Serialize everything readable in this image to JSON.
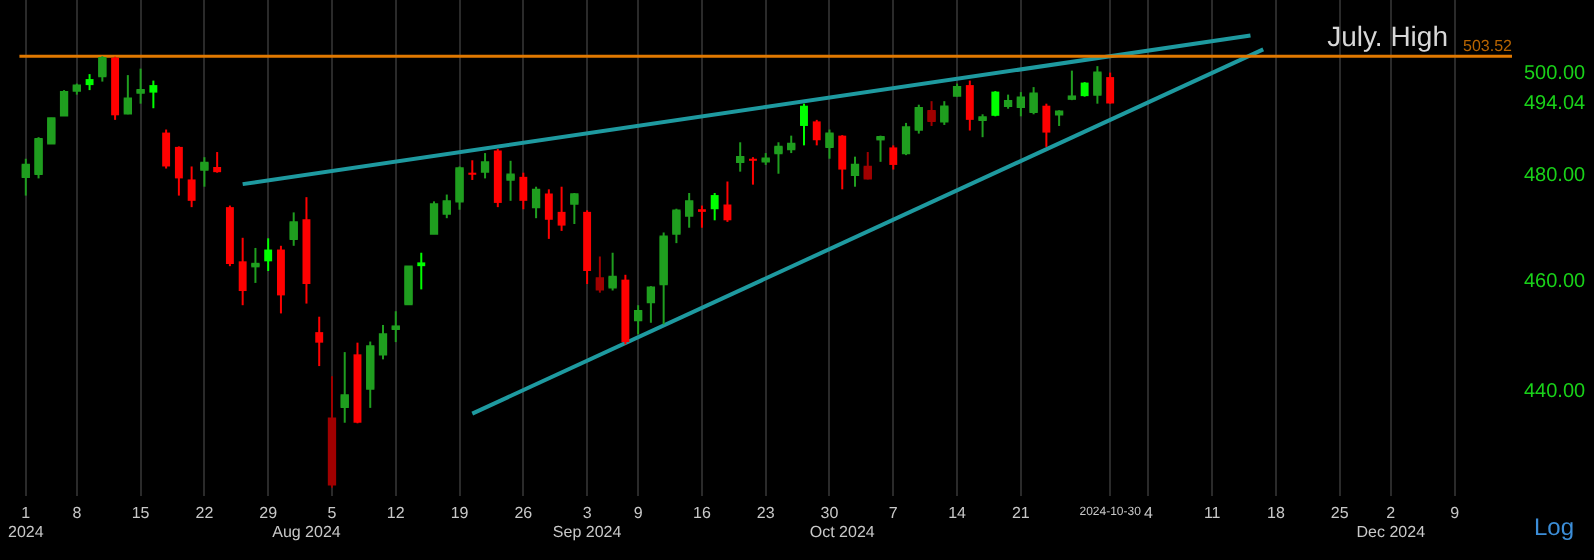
{
  "chart_data": {
    "type": "candlestick",
    "categories": [
      "1\n2024",
      null,
      null,
      null,
      "8",
      null,
      null,
      null,
      null,
      "15",
      null,
      null,
      null,
      null,
      "22",
      null,
      null,
      null,
      null,
      "29",
      null,
      null,
      "\nAug 2024",
      null,
      "5",
      null,
      null,
      null,
      null,
      "12",
      null,
      null,
      null,
      null,
      "19",
      null,
      null,
      null,
      null,
      "26",
      null,
      null,
      null,
      null,
      "3\nSep 2024",
      null,
      null,
      null,
      "9",
      null,
      null,
      null,
      null,
      "16",
      null,
      null,
      null,
      null,
      "23",
      null,
      null,
      null,
      null,
      "30",
      "\nOct 2024",
      null,
      null,
      null,
      "7",
      null,
      null,
      null,
      null,
      "14",
      null,
      null,
      null,
      null,
      "21",
      null,
      null,
      null,
      null,
      null,
      null,
      "2024-10-30",
      null,
      null,
      "4",
      null,
      null,
      null,
      null,
      "11",
      null,
      null,
      null,
      null,
      "18",
      null,
      null,
      null,
      null,
      "25",
      null,
      null,
      null,
      "2\nDec 2024",
      null,
      null,
      null,
      null,
      "9",
      null,
      null,
      null,
      null
    ],
    "ohlc": [
      [
        479.7,
        483.2,
        476.1,
        482.0
      ],
      [
        480.3,
        487.4,
        479.4,
        487.0
      ],
      [
        486.2,
        491.2,
        486.1,
        491.1
      ],
      [
        491.7,
        496.7,
        491.6,
        496.3
      ],
      [
        496.6,
        498.0,
        495.8,
        497.6
      ],
      [
        498.9,
        499.9,
        496.7,
        497.7
      ],
      [
        499.5,
        503.52,
        498.4,
        503.1
      ],
      [
        503.2,
        503.4,
        490.8,
        491.7
      ],
      [
        492.1,
        499.7,
        491.9,
        495.0
      ],
      [
        496.2,
        501.0,
        494.0,
        496.7
      ],
      [
        497.7,
        498.6,
        493.1,
        496.2
      ],
      [
        488.3,
        488.9,
        481.3,
        481.7
      ],
      [
        485.5,
        485.6,
        476.1,
        479.4
      ],
      [
        479.2,
        481.7,
        473.9,
        475.1
      ],
      [
        481.1,
        483.5,
        477.8,
        482.4
      ],
      [
        481.6,
        484.5,
        480.5,
        480.6
      ],
      [
        473.9,
        474.2,
        462.8,
        463.2
      ],
      [
        463.7,
        468.1,
        455.6,
        458.2
      ],
      [
        462.8,
        466.2,
        459.7,
        463.2
      ],
      [
        465.9,
        468.0,
        461.9,
        463.7
      ],
      [
        465.9,
        466.6,
        454.1,
        457.4
      ],
      [
        467.9,
        472.9,
        466.6,
        471.0
      ],
      [
        471.6,
        475.8,
        455.9,
        459.5
      ],
      [
        450.7,
        453.5,
        444.6,
        448.8
      ],
      [
        424.0,
        442.8,
        423.4,
        435.3
      ],
      [
        437.4,
        447.1,
        434.6,
        439.4
      ],
      [
        446.7,
        448.8,
        434.5,
        434.6
      ],
      [
        440.6,
        449.0,
        437.2,
        448.1
      ],
      [
        446.7,
        452.0,
        445.8,
        450.3
      ],
      [
        451.3,
        454.5,
        448.9,
        451.7
      ],
      [
        455.8,
        462.8,
        455.7,
        462.7
      ],
      [
        463.5,
        465.3,
        458.5,
        462.8
      ],
      [
        468.9,
        475.0,
        468.8,
        474.4
      ],
      [
        472.7,
        476.3,
        471.8,
        475.0
      ],
      [
        475.0,
        481.7,
        473.4,
        481.3
      ],
      [
        480.5,
        482.9,
        479.1,
        480.1
      ],
      [
        480.7,
        484.3,
        479.4,
        482.5
      ],
      [
        484.8,
        485.1,
        473.9,
        474.7
      ],
      [
        479.2,
        482.8,
        475.1,
        480.1
      ],
      [
        479.7,
        480.5,
        473.5,
        475.1
      ],
      [
        473.9,
        477.8,
        471.8,
        477.2
      ],
      [
        476.5,
        477.3,
        467.9,
        471.5
      ],
      [
        473.0,
        477.8,
        469.4,
        470.4
      ],
      [
        474.6,
        476.6,
        470.7,
        476.3
      ],
      [
        473.0,
        473.3,
        459.5,
        461.9
      ],
      [
        458.5,
        464.6,
        457.9,
        460.5
      ],
      [
        458.9,
        465.3,
        458.3,
        460.8
      ],
      [
        460.3,
        461.2,
        448.5,
        448.9
      ],
      [
        452.9,
        455.6,
        450.3,
        454.5
      ],
      [
        456.2,
        459.1,
        452.4,
        458.8
      ],
      [
        459.5,
        469.1,
        452.1,
        468.3
      ],
      [
        468.9,
        473.6,
        467.1,
        473.2
      ],
      [
        472.3,
        476.6,
        470.0,
        475.0
      ],
      [
        473.5,
        474.2,
        470.0,
        473.0
      ],
      [
        476.2,
        476.6,
        471.4,
        473.5
      ],
      [
        474.4,
        478.8,
        471.1,
        471.4
      ],
      [
        482.6,
        486.4,
        480.7,
        483.5
      ],
      [
        483.2,
        483.5,
        478.2,
        482.8
      ],
      [
        482.7,
        484.3,
        482.0,
        483.2
      ],
      [
        484.3,
        486.4,
        480.3,
        485.5
      ],
      [
        485.1,
        487.7,
        484.3,
        486.1
      ],
      [
        493.6,
        494.0,
        485.8,
        489.6
      ],
      [
        490.5,
        490.8,
        485.8,
        486.8
      ],
      [
        485.5,
        488.9,
        483.2,
        488.1
      ],
      [
        487.7,
        487.8,
        477.3,
        481.1
      ],
      [
        480.1,
        483.6,
        477.8,
        482.0
      ],
      [
        479.4,
        484.5,
        479.2,
        481.6
      ],
      [
        487.0,
        487.7,
        482.6,
        487.4
      ],
      [
        485.4,
        485.8,
        481.1,
        482.0
      ],
      [
        484.3,
        490.2,
        483.9,
        489.3
      ],
      [
        488.9,
        493.8,
        488.1,
        493.1
      ],
      [
        490.6,
        494.5,
        489.6,
        492.5
      ],
      [
        490.5,
        494.5,
        489.8,
        493.4
      ],
      [
        495.6,
        498.0,
        495.4,
        497.3
      ],
      [
        497.7,
        498.6,
        488.7,
        490.8
      ],
      [
        490.8,
        491.9,
        487.4,
        491.3
      ],
      [
        496.4,
        496.5,
        491.5,
        491.6
      ],
      [
        493.6,
        495.8,
        493.0,
        494.5
      ],
      [
        493.4,
        496.3,
        491.5,
        495.2
      ],
      [
        492.4,
        497.3,
        491.9,
        496.0
      ],
      [
        493.6,
        494.0,
        485.5,
        488.3
      ],
      [
        491.9,
        492.7,
        489.6,
        492.4
      ],
      [
        495.0,
        500.6,
        494.7,
        495.4
      ],
      [
        498.2,
        498.3,
        495.4,
        495.5
      ],
      [
        495.8,
        501.5,
        494.0,
        500.2
      ],
      [
        499.3,
        500.2,
        494.0,
        494.04
      ],
      null,
      null,
      null,
      null,
      null,
      null,
      null,
      null,
      null,
      null,
      null,
      null,
      null,
      null,
      null,
      null,
      null,
      null,
      null,
      null,
      null,
      null,
      null,
      null,
      null,
      null,
      null,
      null,
      null,
      null,
      null
    ],
    "colors": [
      "#1f9e1f",
      "#1f9e1f",
      "#1f9e1f",
      "#1f9e1f",
      "#1f9e1f",
      "#00ff00",
      "#1f9e1f",
      "#ff0000",
      "#1f9e1f",
      "#1f9e1f",
      "#00ff00",
      "#ff0000",
      "#ff0000",
      "#ff0000",
      "#1f9e1f",
      "#ff0000",
      "#ff0000",
      "#ff0000",
      "#1f9e1f",
      "#00ff00",
      "#ff0000",
      "#1f9e1f",
      "#ff0000",
      "#ff0000",
      "#a00000",
      "#1f9e1f",
      "#ff0000",
      "#1f9e1f",
      "#1f9e1f",
      "#1f9e1f",
      "#1f9e1f",
      "#00ff00",
      "#1f9e1f",
      "#1f9e1f",
      "#1f9e1f",
      "#ff0000",
      "#1f9e1f",
      "#ff0000",
      "#1f9e1f",
      "#ff0000",
      "#1f9e1f",
      "#ff0000",
      "#ff0000",
      "#1f9e1f",
      "#ff0000",
      "#a00000",
      "#1f9e1f",
      "#ff0000",
      "#1f9e1f",
      "#1f9e1f",
      "#1f9e1f",
      "#1f9e1f",
      "#1f9e1f",
      "#ff0000",
      "#00ff00",
      "#ff0000",
      "#1f9e1f",
      "#ff0000",
      "#1f9e1f",
      "#1f9e1f",
      "#1f9e1f",
      "#00ff00",
      "#ff0000",
      "#1f9e1f",
      "#ff0000",
      "#1f9e1f",
      "#a00000",
      "#1f9e1f",
      "#ff0000",
      "#1f9e1f",
      "#1f9e1f",
      "#a00000",
      "#1f9e1f",
      "#1f9e1f",
      "#ff0000",
      "#1f9e1f",
      "#00ff00",
      "#1f9e1f",
      "#1f9e1f",
      "#1f9e1f",
      "#ff0000",
      "#1f9e1f",
      "#1f9e1f",
      "#00ff00",
      "#1f9e1f",
      "#ff0000",
      null,
      null,
      null,
      null,
      null,
      null,
      null,
      null,
      null,
      null,
      null,
      null,
      null,
      null,
      null,
      null,
      null,
      null,
      null,
      null,
      null,
      null,
      null,
      null,
      null,
      null,
      null,
      null,
      null,
      null,
      null
    ],
    "series": [
      {
        "type": "line",
        "color": "#1e9aa0",
        "values": [
          null,
          null,
          null,
          null,
          null,
          null,
          null,
          null,
          null,
          null,
          null,
          null,
          null,
          null,
          null,
          null,
          null,
          478.3,
          null,
          null,
          null,
          null,
          null,
          null,
          null,
          null,
          null,
          null,
          null,
          null,
          null,
          null,
          null,
          null,
          null,
          null,
          null,
          null,
          null,
          null,
          null,
          null,
          null,
          null,
          null,
          null,
          null,
          null,
          null,
          null,
          null,
          null,
          null,
          null,
          null,
          null,
          null,
          null,
          null,
          null,
          null,
          null,
          null,
          null,
          null,
          null,
          null,
          null,
          null,
          null,
          null,
          null,
          null,
          null,
          null,
          null,
          null,
          null,
          null,
          null,
          null,
          null,
          null,
          null,
          null,
          null,
          null,
          null,
          null,
          null,
          null,
          null,
          null,
          null,
          null,
          null,
          507.7,
          null,
          null,
          null,
          null,
          null,
          null,
          null,
          null,
          null,
          null,
          null,
          null,
          null,
          null,
          null,
          null,
          null,
          null,
          null,
          null
        ]
      },
      {
        "type": "line",
        "color": "#1e9aa0",
        "values": [
          null,
          null,
          null,
          null,
          null,
          null,
          null,
          null,
          null,
          null,
          null,
          null,
          null,
          null,
          null,
          null,
          null,
          null,
          null,
          null,
          null,
          null,
          null,
          null,
          null,
          null,
          null,
          null,
          null,
          null,
          null,
          null,
          null,
          null,
          null,
          436.2,
          null,
          null,
          null,
          null,
          null,
          null,
          null,
          null,
          null,
          null,
          null,
          null,
          null,
          null,
          null,
          null,
          null,
          null,
          null,
          null,
          null,
          null,
          null,
          null,
          null,
          null,
          null,
          null,
          null,
          null,
          null,
          null,
          null,
          null,
          null,
          null,
          null,
          null,
          null,
          null,
          null,
          null,
          null,
          null,
          null,
          null,
          null,
          null,
          null,
          null,
          null,
          null,
          null,
          null,
          null,
          null,
          null,
          null,
          null,
          null,
          null,
          504.9,
          null,
          null,
          null,
          null,
          null,
          null,
          null,
          null,
          null,
          null,
          null,
          null,
          null,
          null,
          null,
          null,
          null,
          null,
          null
        ]
      }
    ],
    "ylim": [
      422,
      515
    ],
    "yticks": [
      {
        "value": 440,
        "label": "440.00"
      },
      {
        "value": 460,
        "label": "460.00"
      },
      {
        "value": 480,
        "label": "480.00"
      },
      {
        "value": 494.04,
        "label": "494.04"
      },
      {
        "value": 500,
        "label": "500.00"
      }
    ],
    "log": true,
    "grid": "x",
    "ref_lines": [
      {
        "axis": "y",
        "value": 503.52,
        "label": "July. High",
        "color": "#e07800"
      }
    ],
    "annotations": [
      {
        "text": "503.52",
        "y": 503.52
      },
      "Log"
    ]
  }
}
